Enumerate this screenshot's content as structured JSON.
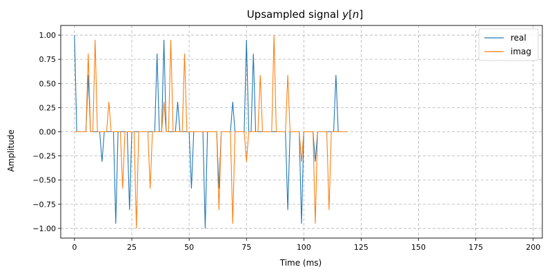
{
  "chart_data": {
    "type": "line",
    "title_prefix": "Upsampled signal ",
    "title_var": "y",
    "title_bracket_open": "[",
    "title_index": "n",
    "title_bracket_close": "]",
    "xlabel": "Time (ms)",
    "ylabel": "Amplitude",
    "xlim": [
      -6,
      204
    ],
    "ylim": [
      -1.1,
      1.1
    ],
    "xticks": [
      0,
      25,
      50,
      75,
      100,
      125,
      150,
      175,
      200
    ],
    "yticks": [
      -1.0,
      -0.75,
      -0.5,
      -0.25,
      0.0,
      0.25,
      0.5,
      0.75,
      1.0
    ],
    "ytick_labels": [
      "−1.00",
      "−0.75",
      "−0.50",
      "−0.25",
      "0.00",
      "0.25",
      "0.50",
      "0.75",
      "1.00"
    ],
    "grid": true,
    "legend_position": "top-right",
    "upsample_factor": 3,
    "sample_period_ms": 1,
    "series": [
      {
        "name": "real",
        "color": "#1f77b4",
        "samples": [
          1,
          0,
          0.588,
          0,
          -0.309,
          0,
          -0.951,
          0,
          -0.809,
          0,
          0,
          0,
          0.809,
          0.951,
          0,
          0.309,
          0,
          -0.588,
          0,
          -1,
          0,
          -0.588,
          0,
          0.309,
          0,
          0.951,
          0.809,
          0,
          0,
          0,
          0,
          -0.809,
          0,
          -0.951,
          0,
          -0.309,
          0,
          0,
          0.588,
          0
        ]
      },
      {
        "name": "imag",
        "color": "#ff7f0e",
        "samples": [
          0,
          0,
          0.809,
          0.951,
          0,
          0.309,
          0,
          -0.588,
          0,
          -1,
          0,
          -0.588,
          0,
          0.309,
          0.951,
          0,
          0.809,
          0,
          0,
          0,
          0,
          -0.809,
          0,
          -0.951,
          0,
          -0.309,
          0,
          0.588,
          0,
          1,
          0,
          0.588,
          0,
          -0.309,
          0,
          -0.951,
          0,
          -0.809,
          0,
          0
        ]
      }
    ]
  }
}
